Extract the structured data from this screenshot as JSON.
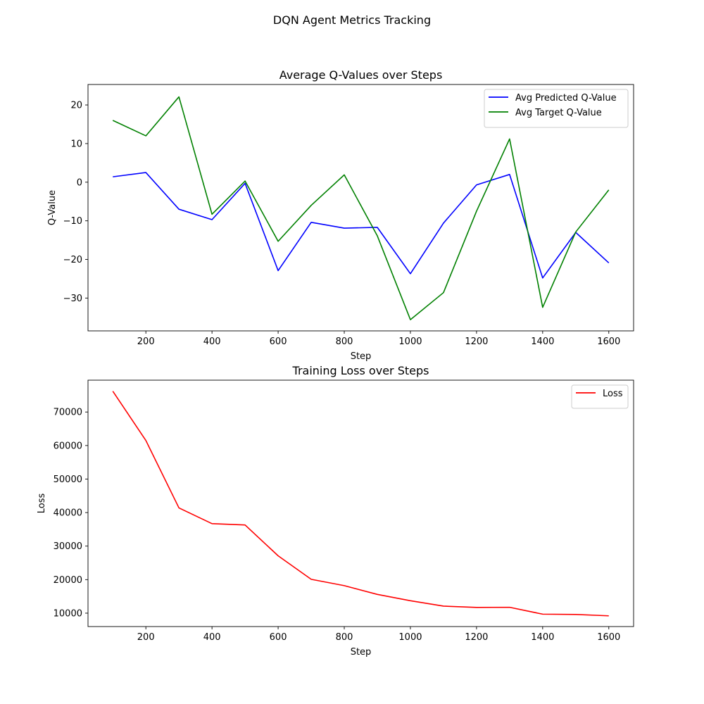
{
  "figure": {
    "suptitle": "DQN Agent Metrics Tracking"
  },
  "chart_data": [
    {
      "type": "line",
      "title": "Average Q-Values over Steps",
      "xlabel": "Step",
      "ylabel": "Q-Value",
      "xlim": [
        25,
        1675
      ],
      "ylim": [
        -38.5,
        25.3
      ],
      "xticks": [
        200,
        400,
        600,
        800,
        1000,
        1200,
        1400,
        1600
      ],
      "yticks": [
        -30,
        -20,
        -10,
        0,
        10,
        20
      ],
      "grid": false,
      "legend_position": "top-right",
      "x": [
        100,
        200,
        300,
        400,
        500,
        600,
        700,
        800,
        900,
        1000,
        1100,
        1200,
        1300,
        1400,
        1500,
        1600
      ],
      "series": [
        {
          "name": "Avg Predicted Q-Value",
          "color": "#0000ff",
          "values": [
            1.4,
            2.5,
            -7.0,
            -9.7,
            -0.3,
            -22.9,
            -10.4,
            -11.9,
            -11.7,
            -23.7,
            -10.6,
            -0.7,
            2.0,
            -24.8,
            -13.0,
            -20.9
          ]
        },
        {
          "name": "Avg Target Q-Value",
          "color": "#008000",
          "values": [
            16.0,
            12.0,
            22.1,
            -8.3,
            0.3,
            -15.3,
            -6.0,
            1.9,
            -13.9,
            -35.6,
            -28.6,
            -7.5,
            11.2,
            -32.4,
            -12.9,
            -2.0
          ]
        }
      ]
    },
    {
      "type": "line",
      "title": "Training Loss over Steps",
      "xlabel": "Step",
      "ylabel": "Loss",
      "xlim": [
        25,
        1675
      ],
      "ylim": [
        6000,
        79500
      ],
      "xticks": [
        200,
        400,
        600,
        800,
        1000,
        1200,
        1400,
        1600
      ],
      "yticks": [
        10000,
        20000,
        30000,
        40000,
        50000,
        60000,
        70000
      ],
      "grid": false,
      "legend_position": "top-right",
      "x": [
        100,
        200,
        300,
        400,
        500,
        600,
        700,
        800,
        900,
        1000,
        1100,
        1200,
        1300,
        1400,
        1500,
        1600
      ],
      "series": [
        {
          "name": "Loss",
          "color": "#ff0000",
          "values": [
            76200,
            61500,
            41400,
            36700,
            36300,
            27100,
            20100,
            18200,
            15600,
            13700,
            12100,
            11700,
            11750,
            9700,
            9600,
            9200
          ]
        }
      ]
    }
  ]
}
